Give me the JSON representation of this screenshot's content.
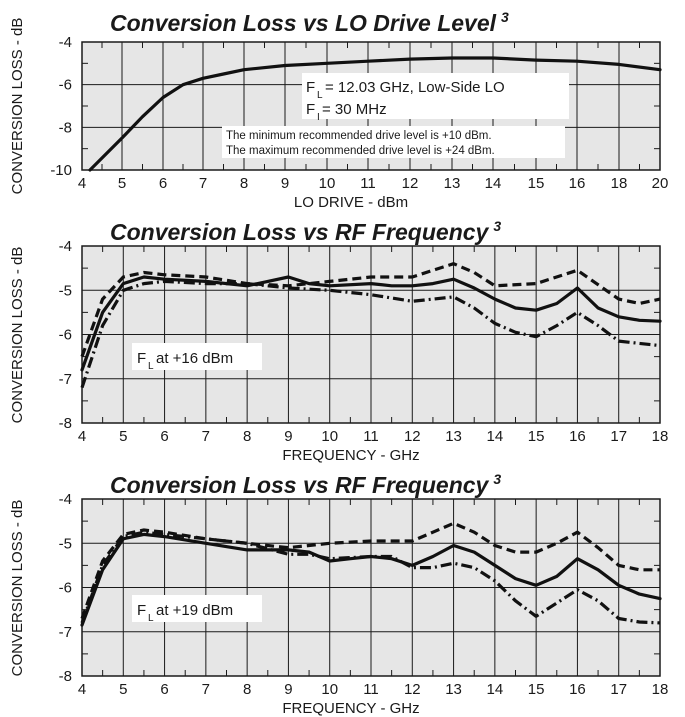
{
  "chart_data": [
    {
      "type": "line",
      "title": "Conversion Loss vs LO Drive Level",
      "title_sup": "3",
      "xlabel": "LO DRIVE - dBm",
      "ylabel": "CONVERSION LOSS - dB",
      "xticks": [
        "4",
        "5",
        "6",
        "7",
        "8",
        "9",
        "10",
        "11",
        "12",
        "13",
        "14",
        "15",
        "16",
        "18",
        "20"
      ],
      "yticks": [
        "-4",
        "-6",
        "-8",
        "-10"
      ],
      "ylim": [
        -10,
        -4
      ],
      "grid": true,
      "annotations": {
        "fl_label": "F",
        "fl_sub": "L",
        "fl_text": "= 12.03 GHz, Low-Side LO",
        "fi_label": "F",
        "fi_sub": "I",
        "fi_text": "= 30 MHz",
        "note_min": "The minimum recommended drive level is +10 dBm.",
        "note_max": "The maximum recommended drive level is +24 dBm."
      },
      "series": [
        {
          "style": "solid",
          "x": [
            4.2,
            4.6,
            5.0,
            5.5,
            6.0,
            6.5,
            7.0,
            7.5,
            8.0,
            9.0,
            10.0,
            11.0,
            12.0,
            13.0,
            14.0,
            15.0,
            16.0,
            18.0,
            20.0
          ],
          "y": [
            -10.0,
            -9.25,
            -8.5,
            -7.5,
            -6.6,
            -6.0,
            -5.7,
            -5.5,
            -5.3,
            -5.1,
            -5.0,
            -4.9,
            -4.8,
            -4.75,
            -4.75,
            -4.85,
            -4.9,
            -5.05,
            -5.3
          ]
        }
      ]
    },
    {
      "type": "line",
      "title": "Conversion Loss vs RF Frequency",
      "title_sup": "3",
      "xlabel": "FREQUENCY - GHz",
      "ylabel": "CONVERSION LOSS - dB",
      "xticks": [
        "4",
        "5",
        "6",
        "7",
        "8",
        "9",
        "10",
        "11",
        "12",
        "13",
        "14",
        "15",
        "16",
        "17",
        "18"
      ],
      "yticks": [
        "-4",
        "-5",
        "-6",
        "-7",
        "-8"
      ],
      "ylim": [
        -8,
        -4
      ],
      "xlim": [
        4,
        18
      ],
      "grid": true,
      "annotation": {
        "label": "F",
        "sub": "L",
        "text": " at +16 dBm"
      },
      "series": [
        {
          "style": "solid",
          "x": [
            4.0,
            4.5,
            5.0,
            5.5,
            6.0,
            7.0,
            8.0,
            8.5,
            9.0,
            9.5,
            10.0,
            11.0,
            11.5,
            12.0,
            12.5,
            13.0,
            13.5,
            14.0,
            14.5,
            15.0,
            15.5,
            16.0,
            16.5,
            17.0,
            17.5,
            18.0
          ],
          "y": [
            -6.8,
            -5.5,
            -4.85,
            -4.7,
            -4.75,
            -4.8,
            -4.9,
            -4.8,
            -4.7,
            -4.85,
            -4.9,
            -4.85,
            -4.9,
            -4.9,
            -4.85,
            -4.75,
            -4.95,
            -5.2,
            -5.4,
            -5.45,
            -5.3,
            -4.95,
            -5.4,
            -5.6,
            -5.68,
            -5.7
          ]
        },
        {
          "style": "dashed",
          "x": [
            4.0,
            4.5,
            5.0,
            5.5,
            6.0,
            7.0,
            8.0,
            9.0,
            10.0,
            11.0,
            12.0,
            12.5,
            13.0,
            13.5,
            14.0,
            15.0,
            16.0,
            17.0,
            17.5,
            18.0
          ],
          "y": [
            -6.5,
            -5.2,
            -4.7,
            -4.6,
            -4.65,
            -4.7,
            -4.85,
            -4.9,
            -4.8,
            -4.7,
            -4.7,
            -4.55,
            -4.4,
            -4.6,
            -4.9,
            -4.85,
            -4.55,
            -5.2,
            -5.3,
            -5.2
          ]
        },
        {
          "style": "dashdot",
          "x": [
            4.0,
            4.5,
            5.0,
            5.5,
            6.0,
            7.0,
            8.0,
            9.0,
            10.0,
            11.0,
            12.0,
            12.5,
            13.0,
            13.5,
            14.0,
            14.5,
            15.0,
            15.5,
            16.0,
            16.5,
            17.0,
            17.5,
            18.0
          ],
          "y": [
            -7.2,
            -5.8,
            -5.0,
            -4.85,
            -4.8,
            -4.85,
            -4.85,
            -4.95,
            -5.0,
            -5.1,
            -5.25,
            -5.2,
            -5.15,
            -5.4,
            -5.75,
            -5.95,
            -6.05,
            -5.8,
            -5.5,
            -5.8,
            -6.15,
            -6.2,
            -6.25
          ]
        }
      ]
    },
    {
      "type": "line",
      "title": "Conversion Loss vs RF Frequency",
      "title_sup": "3",
      "xlabel": "FREQUENCY - GHz",
      "ylabel": "CONVERSION LOSS - dB",
      "xticks": [
        "4",
        "5",
        "6",
        "7",
        "8",
        "9",
        "10",
        "11",
        "12",
        "13",
        "14",
        "15",
        "16",
        "17",
        "18"
      ],
      "yticks": [
        "-4",
        "-5",
        "-6",
        "-7",
        "-8"
      ],
      "ylim": [
        -8,
        -4
      ],
      "xlim": [
        4,
        18
      ],
      "grid": true,
      "annotation": {
        "label": "F",
        "sub": "L",
        "text": " at +19 dBm"
      },
      "series": [
        {
          "style": "solid",
          "x": [
            4.0,
            4.5,
            5.0,
            5.5,
            6.0,
            7.0,
            8.0,
            9.0,
            9.5,
            10.0,
            10.5,
            11.0,
            11.5,
            12.0,
            12.5,
            13.0,
            13.5,
            14.0,
            14.5,
            15.0,
            15.5,
            16.0,
            16.5,
            17.0,
            17.5,
            18.0
          ],
          "y": [
            -6.85,
            -5.6,
            -4.9,
            -4.8,
            -4.85,
            -5.0,
            -5.15,
            -5.15,
            -5.2,
            -5.4,
            -5.35,
            -5.3,
            -5.35,
            -5.5,
            -5.3,
            -5.05,
            -5.2,
            -5.5,
            -5.8,
            -5.95,
            -5.75,
            -5.35,
            -5.6,
            -5.95,
            -6.15,
            -6.25
          ]
        },
        {
          "style": "dashed",
          "x": [
            4.0,
            4.5,
            5.0,
            5.5,
            6.0,
            7.0,
            8.0,
            9.0,
            10.0,
            11.0,
            12.0,
            12.5,
            13.0,
            13.5,
            14.0,
            14.5,
            15.0,
            15.5,
            16.0,
            16.5,
            17.0,
            17.5,
            18.0
          ],
          "y": [
            -6.7,
            -5.4,
            -4.8,
            -4.7,
            -4.75,
            -4.9,
            -5.0,
            -5.1,
            -5.0,
            -4.95,
            -4.95,
            -4.75,
            -4.55,
            -4.75,
            -5.05,
            -5.2,
            -5.2,
            -5.0,
            -4.75,
            -5.1,
            -5.5,
            -5.6,
            -5.6
          ]
        },
        {
          "style": "dashdot",
          "x": [
            4.0,
            4.5,
            5.0,
            5.5,
            6.0,
            7.0,
            8.0,
            9.0,
            9.5,
            10.0,
            11.0,
            11.5,
            12.0,
            12.5,
            13.0,
            13.5,
            14.0,
            14.5,
            15.0,
            15.5,
            16.0,
            16.5,
            17.0,
            17.5,
            18.0
          ],
          "y": [
            -6.8,
            -5.5,
            -4.85,
            -4.75,
            -4.8,
            -4.9,
            -5.0,
            -5.25,
            -5.25,
            -5.35,
            -5.3,
            -5.3,
            -5.55,
            -5.55,
            -5.45,
            -5.55,
            -5.85,
            -6.3,
            -6.65,
            -6.35,
            -6.05,
            -6.3,
            -6.7,
            -6.78,
            -6.8
          ]
        }
      ]
    }
  ]
}
